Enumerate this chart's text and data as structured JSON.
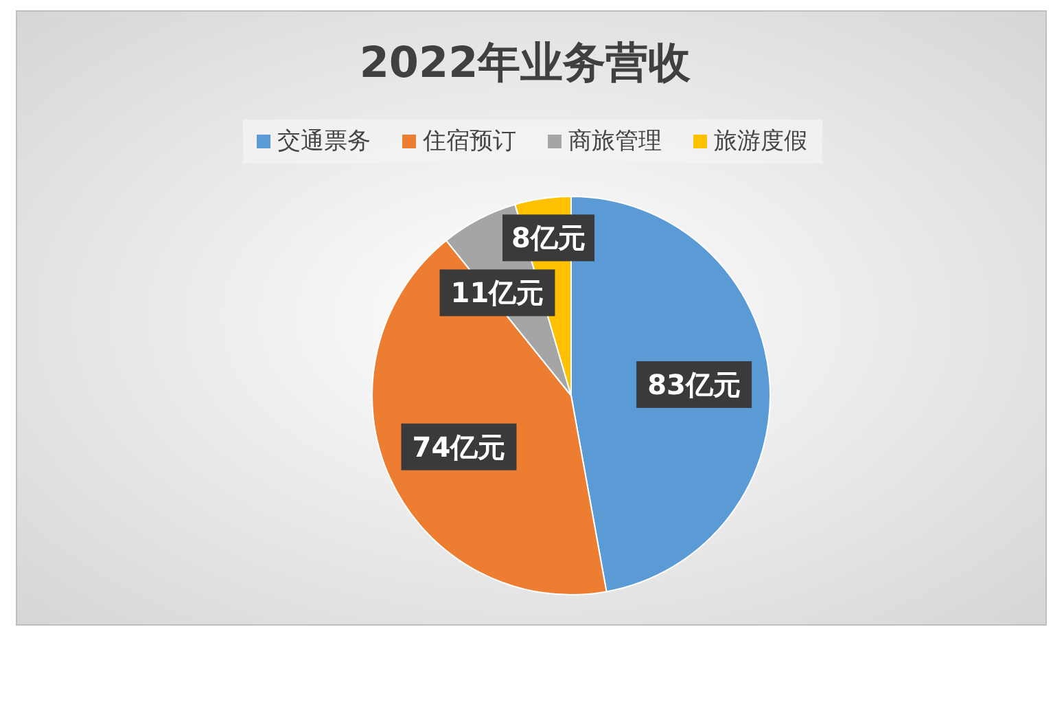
{
  "chart_data": {
    "type": "pie",
    "title": "2022年业务营收",
    "categories": [
      "交通票务",
      "住宿预订",
      "商旅管理",
      "旅游度假"
    ],
    "values": [
      83,
      74,
      11,
      8
    ],
    "value_labels": [
      "83亿元",
      "74亿元",
      "11亿元",
      "8亿元"
    ],
    "colors": [
      "#5b9bd5",
      "#ed7d31",
      "#a5a5a5",
      "#ffc000"
    ],
    "legend": "top"
  }
}
